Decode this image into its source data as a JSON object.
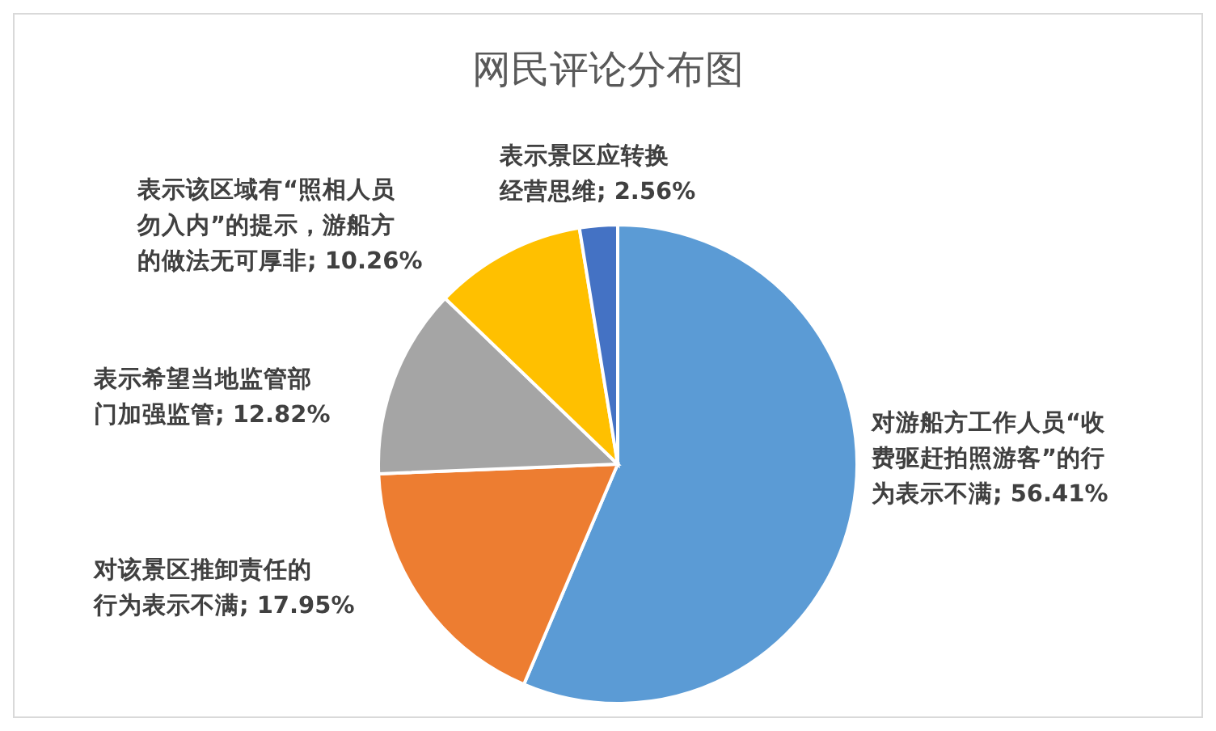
{
  "chart_data": {
    "type": "pie",
    "title": "网民评论分布图",
    "categories": [
      "对游船方工作人员“收费驱赶拍照游客”的行为表示不满",
      "对该景区推卸责任的行为表示不满",
      "表示希望当地监管部门加强监管",
      "表示该区域有“照相人员勿入内”的提示，游船方的做法无可厚非",
      "表示景区应转换经营思维"
    ],
    "values": [
      56.41,
      17.95,
      12.82,
      10.26,
      2.56
    ],
    "value_labels": [
      "56.41%",
      "17.95%",
      "12.82%",
      "10.26%",
      "2.56%"
    ],
    "colors": [
      "#5b9bd5",
      "#ed7d31",
      "#a5a5a5",
      "#ffc000",
      "#4472c4"
    ],
    "legend": false
  }
}
